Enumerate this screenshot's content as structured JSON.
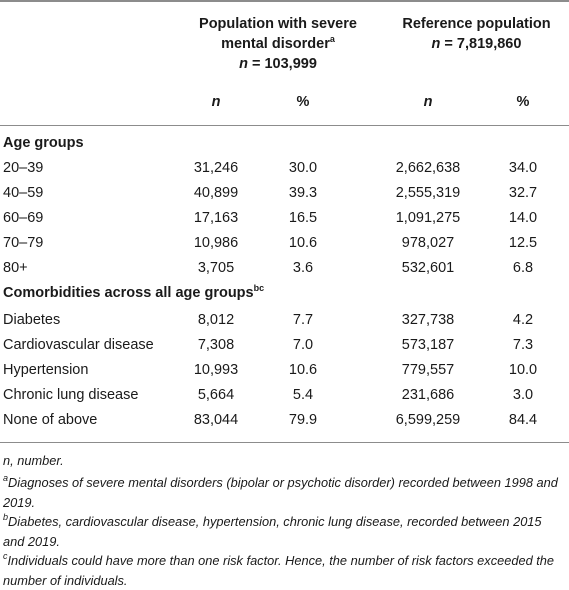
{
  "header": {
    "group1_title_line1": "Population with severe",
    "group1_title_line2_pre": "mental disorder",
    "group1_title_sup": "a",
    "group1_n_label": "n",
    "group1_n_value": " = 103,999",
    "group2_title_line1": "Reference population",
    "group2_n_label": "n",
    "group2_n_value": " = 7,819,860",
    "col_n": "n",
    "col_pct": "%"
  },
  "sections": [
    {
      "title": "Age groups",
      "sup": "",
      "rows": [
        {
          "label": "20–39",
          "n1": "31,246",
          "p1": "30.0",
          "n2": "2,662,638",
          "p2": "34.0"
        },
        {
          "label": "40–59",
          "n1": "40,899",
          "p1": "39.3",
          "n2": "2,555,319",
          "p2": "32.7"
        },
        {
          "label": "60–69",
          "n1": "17,163",
          "p1": "16.5",
          "n2": "1,091,275",
          "p2": "14.0"
        },
        {
          "label": "70–79",
          "n1": "10,986",
          "p1": "10.6",
          "n2": "978,027",
          "p2": "12.5"
        },
        {
          "label": "80+",
          "n1": "3,705",
          "p1": "3.6",
          "n2": "532,601",
          "p2": "6.8"
        }
      ]
    },
    {
      "title": "Comorbidities across all age groups",
      "sup": "bc",
      "rows": [
        {
          "label": "Diabetes",
          "n1": "8,012",
          "p1": "7.7",
          "n2": "327,738",
          "p2": "4.2"
        },
        {
          "label": "Cardiovascular disease",
          "n1": "7,308",
          "p1": "7.0",
          "n2": "573,187",
          "p2": "7.3"
        },
        {
          "label": "Hypertension",
          "n1": "10,993",
          "p1": "10.6",
          "n2": "779,557",
          "p2": "10.0"
        },
        {
          "label": "Chronic lung disease",
          "n1": "5,664",
          "p1": "5.4",
          "n2": "231,686",
          "p2": "3.0"
        },
        {
          "label": "None of above",
          "n1": "83,044",
          "p1": "79.9",
          "n2": "6,599,259",
          "p2": "84.4"
        }
      ]
    }
  ],
  "footnotes": [
    {
      "sup": "",
      "text": "n, number."
    },
    {
      "sup": "a",
      "text": "Diagnoses of severe mental disorders (bipolar or psychotic disorder) recorded between 1998 and 2019."
    },
    {
      "sup": "b",
      "text": "Diabetes, cardiovascular disease, hypertension, chronic lung disease, recorded between 2015 and 2019."
    },
    {
      "sup": "c",
      "text": "Individuals could have more than one risk factor. Hence, the number of risk factors exceeded the number of individuals."
    }
  ]
}
